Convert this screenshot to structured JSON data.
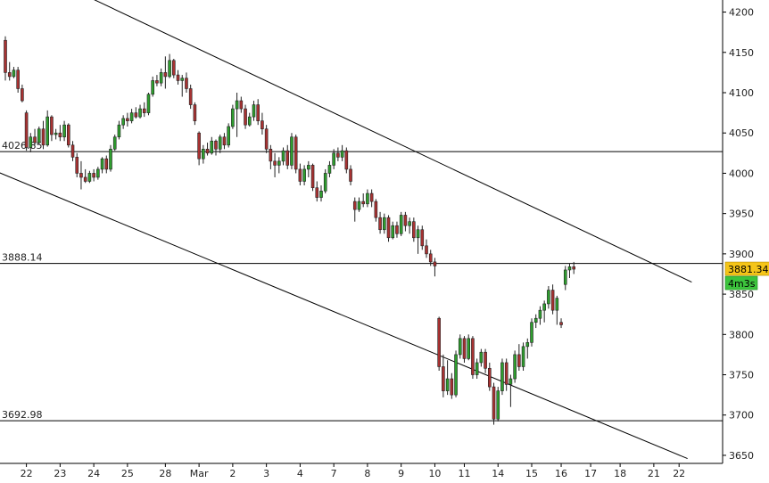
{
  "chart_data": {
    "type": "candlestick",
    "y_axis": {
      "min": 3640,
      "max": 4215,
      "ticks": [
        4200,
        4150,
        4100,
        4050,
        4000,
        3950,
        3900,
        3850,
        3800,
        3750,
        3700,
        3650
      ]
    },
    "x_labels": [
      "22",
      "23",
      "24",
      "25",
      "28",
      "Mar",
      "2",
      "3",
      "4",
      "7",
      "8",
      "9",
      "10",
      "11",
      "14",
      "15",
      "16",
      "17",
      "18",
      "21",
      "22"
    ],
    "candles": [
      [
        4165,
        4170,
        4115,
        4125
      ],
      [
        4125,
        4138,
        4115,
        4120
      ],
      [
        4120,
        4132,
        4118,
        4128
      ],
      [
        4128,
        4132,
        4100,
        4105
      ],
      [
        4105,
        4110,
        4088,
        4090
      ],
      [
        4075,
        4078,
        4028,
        4032
      ],
      [
        4032,
        4050,
        4026,
        4045
      ],
      [
        4045,
        4055,
        4035,
        4038
      ],
      [
        4038,
        4058,
        4036,
        4055
      ],
      [
        4055,
        4065,
        4030,
        4035
      ],
      [
        4035,
        4078,
        4033,
        4070
      ],
      [
        4070,
        4072,
        4040,
        4048
      ],
      [
        4048,
        4055,
        4042,
        4050
      ],
      [
        4050,
        4060,
        4040,
        4045
      ],
      [
        4045,
        4065,
        4040,
        4060
      ],
      [
        4060,
        4062,
        4032,
        4035
      ],
      [
        4035,
        4040,
        4015,
        4020
      ],
      [
        4020,
        4025,
        3995,
        4000
      ],
      [
        4000,
        4015,
        3980,
        3995
      ],
      [
        3995,
        4005,
        3988,
        3990
      ],
      [
        3990,
        4003,
        3988,
        4000
      ],
      [
        4000,
        4005,
        3990,
        3995
      ],
      [
        3995,
        4008,
        3992,
        4005
      ],
      [
        4005,
        4020,
        4000,
        4018
      ],
      [
        4018,
        4022,
        4000,
        4005
      ],
      [
        4005,
        4035,
        4002,
        4030
      ],
      [
        4030,
        4048,
        4028,
        4045
      ],
      [
        4045,
        4065,
        4042,
        4060
      ],
      [
        4060,
        4072,
        4055,
        4068
      ],
      [
        4068,
        4075,
        4058,
        4065
      ],
      [
        4065,
        4080,
        4062,
        4075
      ],
      [
        4075,
        4082,
        4068,
        4070
      ],
      [
        4070,
        4085,
        4068,
        4080
      ],
      [
        4080,
        4088,
        4070,
        4075
      ],
      [
        4075,
        4100,
        4072,
        4098
      ],
      [
        4098,
        4120,
        4095,
        4115
      ],
      [
        4115,
        4122,
        4108,
        4112
      ],
      [
        4112,
        4130,
        4108,
        4125
      ],
      [
        4125,
        4145,
        4105,
        4120
      ],
      [
        4120,
        4148,
        4118,
        4140
      ],
      [
        4140,
        4142,
        4118,
        4122
      ],
      [
        4122,
        4128,
        4110,
        4115
      ],
      [
        4115,
        4122,
        4095,
        4118
      ],
      [
        4118,
        4125,
        4100,
        4105
      ],
      [
        4105,
        4110,
        4080,
        4085
      ],
      [
        4085,
        4088,
        4060,
        4065
      ],
      [
        4050,
        4052,
        4010,
        4018
      ],
      [
        4018,
        4035,
        4012,
        4030
      ],
      [
        4030,
        4038,
        4022,
        4025
      ],
      [
        4025,
        4045,
        4023,
        4040
      ],
      [
        4040,
        4042,
        4022,
        4030
      ],
      [
        4030,
        4048,
        4025,
        4045
      ],
      [
        4045,
        4050,
        4030,
        4035
      ],
      [
        4035,
        4062,
        4032,
        4058
      ],
      [
        4058,
        4085,
        4055,
        4080
      ],
      [
        4080,
        4100,
        4045,
        4090
      ],
      [
        4090,
        4095,
        4075,
        4080
      ],
      [
        4080,
        4085,
        4055,
        4060
      ],
      [
        4060,
        4075,
        4058,
        4070
      ],
      [
        4070,
        4090,
        4065,
        4085
      ],
      [
        4085,
        4092,
        4060,
        4065
      ],
      [
        4065,
        4075,
        4048,
        4055
      ],
      [
        4055,
        4060,
        4025,
        4030
      ],
      [
        4030,
        4035,
        4005,
        4015
      ],
      [
        4015,
        4025,
        3995,
        4010
      ],
      [
        4010,
        4020,
        4000,
        4015
      ],
      [
        4015,
        4032,
        4010,
        4028
      ],
      [
        4028,
        4035,
        4005,
        4010
      ],
      [
        4010,
        4050,
        4005,
        4045
      ],
      [
        4045,
        4048,
        4000,
        4005
      ],
      [
        4005,
        4012,
        3985,
        3990
      ],
      [
        3990,
        4010,
        3985,
        4005
      ],
      [
        4005,
        4015,
        3995,
        4010
      ],
      [
        4010,
        4012,
        3978,
        3982
      ],
      [
        3982,
        3990,
        3965,
        3970
      ],
      [
        3970,
        3985,
        3965,
        3978
      ],
      [
        3978,
        4005,
        3975,
        4000
      ],
      [
        4000,
        4015,
        3995,
        4010
      ],
      [
        4010,
        4030,
        4005,
        4025
      ],
      [
        4025,
        4032,
        4015,
        4020
      ],
      [
        4020,
        4035,
        4015,
        4028
      ],
      [
        4028,
        4032,
        4000,
        4005
      ],
      [
        4005,
        4010,
        3985,
        3990
      ],
      [
        3965,
        3970,
        3940,
        3955
      ],
      [
        3955,
        3970,
        3952,
        3965
      ],
      [
        3965,
        3975,
        3958,
        3962
      ],
      [
        3962,
        3980,
        3958,
        3975
      ],
      [
        3975,
        3980,
        3958,
        3965
      ],
      [
        3965,
        3968,
        3940,
        3945
      ],
      [
        3945,
        3952,
        3925,
        3930
      ],
      [
        3930,
        3950,
        3925,
        3945
      ],
      [
        3945,
        3948,
        3915,
        3920
      ],
      [
        3920,
        3940,
        3918,
        3935
      ],
      [
        3935,
        3940,
        3920,
        3925
      ],
      [
        3925,
        3952,
        3922,
        3948
      ],
      [
        3948,
        3952,
        3928,
        3935
      ],
      [
        3935,
        3945,
        3925,
        3940
      ],
      [
        3940,
        3945,
        3915,
        3920
      ],
      [
        3920,
        3935,
        3900,
        3930
      ],
      [
        3930,
        3935,
        3905,
        3910
      ],
      [
        3910,
        3918,
        3895,
        3900
      ],
      [
        3900,
        3905,
        3885,
        3890
      ],
      [
        3890,
        3895,
        3872,
        3885
      ],
      [
        3820,
        3822,
        3755,
        3760
      ],
      [
        3760,
        3775,
        3722,
        3730
      ],
      [
        3730,
        3768,
        3725,
        3745
      ],
      [
        3745,
        3752,
        3720,
        3725
      ],
      [
        3725,
        3780,
        3722,
        3775
      ],
      [
        3775,
        3800,
        3770,
        3795
      ],
      [
        3795,
        3798,
        3765,
        3770
      ],
      [
        3770,
        3800,
        3768,
        3795
      ],
      [
        3795,
        3798,
        3745,
        3750
      ],
      [
        3750,
        3770,
        3745,
        3765
      ],
      [
        3765,
        3782,
        3760,
        3778
      ],
      [
        3778,
        3782,
        3752,
        3758
      ],
      [
        3758,
        3765,
        3730,
        3735
      ],
      [
        3735,
        3740,
        3688,
        3695
      ],
      [
        3695,
        3735,
        3692,
        3730
      ],
      [
        3730,
        3770,
        3725,
        3765
      ],
      [
        3765,
        3770,
        3730,
        3738
      ],
      [
        3738,
        3750,
        3710,
        3745
      ],
      [
        3745,
        3780,
        3740,
        3775
      ],
      [
        3775,
        3788,
        3755,
        3760
      ],
      [
        3760,
        3790,
        3755,
        3785
      ],
      [
        3785,
        3795,
        3770,
        3790
      ],
      [
        3790,
        3820,
        3785,
        3815
      ],
      [
        3815,
        3825,
        3808,
        3820
      ],
      [
        3820,
        3835,
        3812,
        3830
      ],
      [
        3830,
        3842,
        3815,
        3838
      ],
      [
        3838,
        3860,
        3832,
        3855
      ],
      [
        3855,
        3862,
        3825,
        3830
      ],
      [
        3830,
        3848,
        3812,
        3845
      ],
      [
        3815,
        3820,
        3808,
        3812
      ],
      [
        3862,
        3885,
        3855,
        3880
      ],
      [
        3880,
        3888,
        3870,
        3884
      ],
      [
        3884,
        3890,
        3875,
        3881
      ]
    ],
    "label_indices": [
      5,
      13,
      21,
      29,
      38,
      46,
      54,
      62,
      70,
      78,
      86,
      94,
      102,
      109,
      117,
      125,
      132,
      139,
      146,
      154,
      160
    ],
    "horizontal_lines": [
      {
        "value": 4026.85,
        "label": "4026.85"
      },
      {
        "value": 3888.14,
        "label": "3888.14"
      },
      {
        "value": 3692.98,
        "label": "3692.98"
      }
    ],
    "trend_lines": [
      {
        "from": {
          "x": 16,
          "y": 4228
        },
        "to": {
          "x": 163,
          "y": 3865
        }
      },
      {
        "from": {
          "x": -2,
          "y": 4002
        },
        "to": {
          "x": 162,
          "y": 3646
        }
      }
    ],
    "last_price": "3881.34",
    "timer": "4m3s",
    "colors": {
      "up": "#2e9e2e",
      "down": "#a83232",
      "wick": "#222222",
      "line": "#000000",
      "price_badge": "#f5c518",
      "timer_badge": "#3cc43c"
    }
  }
}
